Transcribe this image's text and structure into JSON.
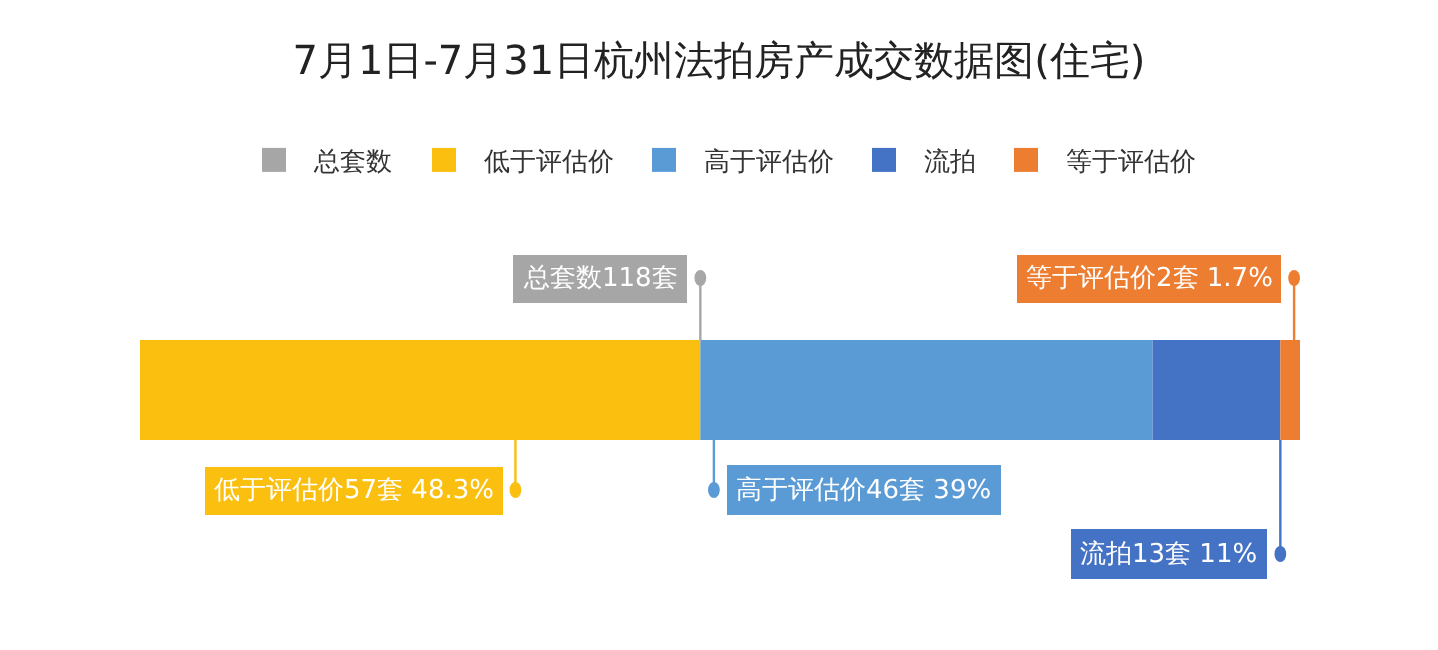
{
  "chart_data": {
    "type": "bar",
    "title": "7月1日-7月31日杭州法拍房产成交数据图(住宅)",
    "orientation": "horizontal",
    "stacked": true,
    "categories": [
      null
    ],
    "legend": "top",
    "annotations": [
      "总套数118套"
    ],
    "series": [
      {
        "name": "低于评估价",
        "color": "#fbbf0f",
        "values": [
          57
        ],
        "value_labels": [
          "低于评估价57套 48.3%"
        ]
      },
      {
        "name": "高于评估价",
        "color": "#5b9bd5",
        "values": [
          46
        ],
        "value_labels": [
          "高于评估价46套 39%"
        ]
      },
      {
        "name": "流拍",
        "color": "#4472c4",
        "values": [
          13
        ],
        "value_labels": [
          "流拍13套 11%"
        ]
      },
      {
        "name": "等于评估价",
        "color": "#ed7d31",
        "values": [
          2
        ],
        "value_labels": [
          "等于评估价2套 1.7%"
        ]
      },
      {
        "name": "总套数",
        "color": "#a6a6a6",
        "values": [
          null
        ]
      }
    ]
  }
}
